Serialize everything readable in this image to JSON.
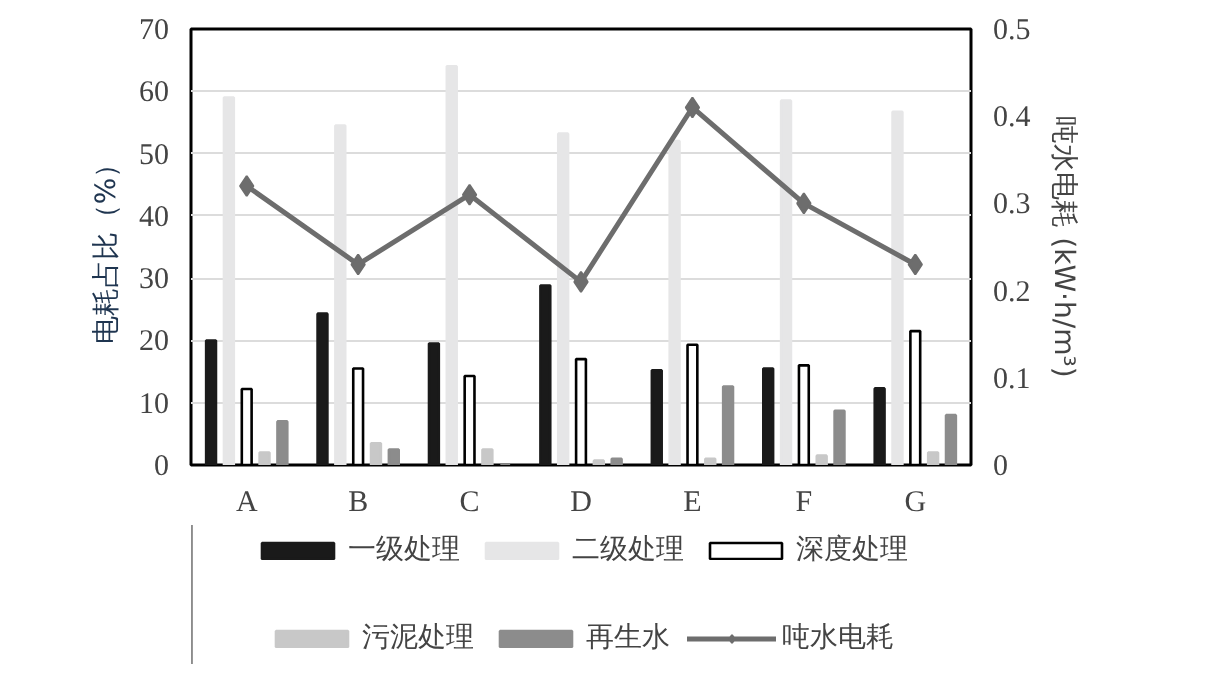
{
  "chart_data": {
    "type": "bar",
    "categories": [
      "A",
      "B",
      "C",
      "D",
      "E",
      "F",
      "G"
    ],
    "ylabel": "电耗占比（%）",
    "y2label": "吨水电耗 (kW·h/m³)",
    "ylim": [
      0,
      70
    ],
    "yticks": [
      0,
      10,
      20,
      30,
      40,
      50,
      60,
      70
    ],
    "y2lim": [
      0,
      0.5
    ],
    "y2ticks": [
      0,
      0.1,
      0.2,
      0.3,
      0.4,
      0.5
    ],
    "grid": "y",
    "legend": "bottom",
    "series": [
      {
        "name": "一级处理",
        "color": "#1a1a1a",
        "values": [
          20,
          24.3,
          19.5,
          28.8,
          15.2,
          15.5,
          12.3
        ]
      },
      {
        "name": "二级处理",
        "color": "#e6e6e7",
        "values": [
          59,
          54.5,
          64,
          53.2,
          52,
          58.5,
          56.7
        ]
      },
      {
        "name": "深度处理",
        "color": "#ffffff",
        "values": [
          12.2,
          15.5,
          14.3,
          17,
          19.3,
          16,
          21.5
        ]
      },
      {
        "name": "污泥处理",
        "color": "#c8c8c8",
        "values": [
          2,
          3.5,
          2.5,
          0.7,
          1,
          1.5,
          2
        ]
      },
      {
        "name": "再生水",
        "color": "#8c8c8c",
        "values": [
          7,
          2.5,
          0,
          1,
          12.6,
          8.7,
          8
        ]
      },
      {
        "name": "吨水电耗",
        "type": "line",
        "axis": "y2",
        "marker": "diamond",
        "color": "#6d6d6d",
        "values": [
          0.32,
          0.23,
          0.31,
          0.21,
          0.41,
          0.3,
          0.23
        ]
      }
    ]
  }
}
